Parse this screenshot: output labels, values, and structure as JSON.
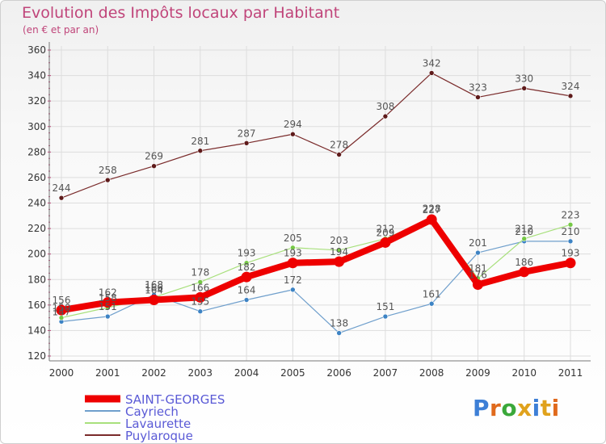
{
  "title": "Evolution des Impôts locaux par Habitant",
  "subtitle": "(en € et par an)",
  "logo_text": "Proxiti",
  "chart_data": {
    "type": "line",
    "title": "Evolution des Impôts locaux par Habitant",
    "subtitle": "(en € et par an)",
    "x": [
      "2000",
      "2001",
      "2002",
      "2003",
      "2004",
      "2005",
      "2006",
      "2007",
      "2008",
      "2009",
      "2010",
      "2011"
    ],
    "ylim": [
      120,
      360
    ],
    "yticks": [
      120,
      140,
      160,
      180,
      200,
      220,
      240,
      260,
      280,
      300,
      320,
      340,
      360
    ],
    "grid": true,
    "legend_position": "bottom-left",
    "series": [
      {
        "name": "Cayriech",
        "color": "#6f9fcc",
        "marker": "#3d83c4",
        "values": [
          147,
          151,
          168,
          155,
          164,
          172,
          138,
          151,
          161,
          201,
          210,
          210
        ]
      },
      {
        "name": "Lavaurette",
        "color": "#a8e07c",
        "marker": "#75c845",
        "values": [
          150,
          158,
          166,
          178,
          193,
          205,
          203,
          212,
          228,
          181,
          212,
          223
        ]
      },
      {
        "name": "Puylaroque",
        "color": "#7a2b2b",
        "marker": "#5e1a1a",
        "values": [
          244,
          258,
          269,
          281,
          287,
          294,
          278,
          308,
          342,
          323,
          330,
          324
        ]
      },
      {
        "name": "SAINT-GEORGES",
        "color": "#ee0000",
        "marker": "#ee0000",
        "highlight": true,
        "values": [
          156,
          162,
          164,
          166,
          182,
          193,
          194,
          209,
          227,
          176,
          186,
          193
        ]
      }
    ],
    "legend_order": [
      "SAINT-GEORGES",
      "Cayriech",
      "Lavaurette",
      "Puylaroque"
    ]
  }
}
